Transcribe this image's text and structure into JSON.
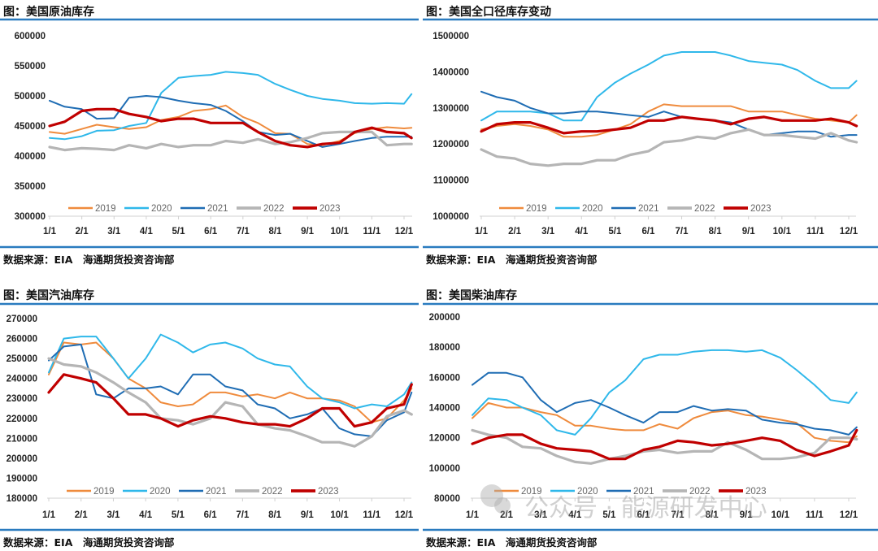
{
  "colors": {
    "accent_rule": "#2a7bbf",
    "2019": "#ef8b3d",
    "2020": "#2fb8ea",
    "2021": "#1f6db4",
    "2022": "#b5b5b5",
    "2023": "#c00000"
  },
  "watermark": "公众号 · 能源研发中心",
  "chart_data": [
    {
      "type": "line",
      "title": "图：美国原油库存",
      "source": "数据来源：EIA　海通期货投资咨询部",
      "xlabel": "",
      "ylabel": "",
      "x_ticks": [
        "1/1",
        "2/1",
        "3/1",
        "4/1",
        "5/1",
        "6/1",
        "7/1",
        "8/1",
        "9/1",
        "10/1",
        "11/1",
        "12/1"
      ],
      "y_ticks": [
        "300000",
        "350000",
        "400000",
        "450000",
        "500000",
        "550000",
        "600000"
      ],
      "ylim": [
        300000,
        600000
      ],
      "legend": "bottom-inside",
      "grid": false,
      "x": [
        "1/1",
        "1/15",
        "2/1",
        "2/15",
        "3/1",
        "3/15",
        "4/1",
        "4/15",
        "5/1",
        "5/15",
        "6/1",
        "6/15",
        "7/1",
        "7/15",
        "8/1",
        "8/15",
        "9/1",
        "9/15",
        "10/1",
        "10/15",
        "11/1",
        "11/15",
        "12/1",
        "12/8"
      ],
      "series": [
        {
          "name": "2019",
          "values": [
            440000,
            437000,
            445000,
            452000,
            448000,
            445000,
            448000,
            460000,
            465000,
            475000,
            478000,
            484000,
            465000,
            455000,
            438000,
            437000,
            420000,
            418000,
            425000,
            438000,
            445000,
            448000,
            446000,
            447000
          ]
        },
        {
          "name": "2020",
          "values": [
            430000,
            428000,
            433000,
            442000,
            443000,
            450000,
            455000,
            505000,
            530000,
            533000,
            535000,
            540000,
            538000,
            535000,
            520000,
            510000,
            500000,
            495000,
            492000,
            488000,
            487000,
            488000,
            487000,
            503000
          ]
        },
        {
          "name": "2021",
          "values": [
            492000,
            482000,
            478000,
            462000,
            463000,
            497000,
            500000,
            498000,
            492000,
            488000,
            485000,
            475000,
            458000,
            440000,
            435000,
            437000,
            425000,
            415000,
            420000,
            425000,
            430000,
            432000,
            432000,
            432000
          ]
        },
        {
          "name": "2022",
          "values": [
            415000,
            410000,
            413000,
            412000,
            410000,
            418000,
            413000,
            420000,
            415000,
            418000,
            418000,
            425000,
            422000,
            428000,
            420000,
            423000,
            430000,
            438000,
            440000,
            440000,
            440000,
            418000,
            420000,
            420000
          ]
        },
        {
          "name": "2023",
          "values": [
            450000,
            457000,
            475000,
            478000,
            478000,
            470000,
            465000,
            458000,
            462000,
            462000,
            455000,
            455000,
            455000,
            440000,
            425000,
            418000,
            415000,
            420000,
            422000,
            440000,
            447000,
            440000,
            438000,
            430000
          ]
        }
      ]
    },
    {
      "type": "line",
      "title": "图：美国全口径库存变动",
      "source": "数据来源：EIA　海通期货投资咨询部",
      "xlabel": "",
      "ylabel": "",
      "x_ticks": [
        "1/1",
        "2/1",
        "3/1",
        "4/1",
        "5/1",
        "6/1",
        "7/1",
        "8/1",
        "9/1",
        "10/1",
        "11/1",
        "12/1"
      ],
      "y_ticks": [
        "1000000",
        "1100000",
        "1200000",
        "1300000",
        "1400000",
        "1500000"
      ],
      "ylim": [
        1000000,
        1500000
      ],
      "legend": "bottom-inside",
      "grid": false,
      "x": [
        "1/1",
        "1/15",
        "2/1",
        "2/15",
        "3/1",
        "3/15",
        "4/1",
        "4/15",
        "5/1",
        "5/15",
        "6/1",
        "6/15",
        "7/1",
        "7/15",
        "8/1",
        "8/15",
        "9/1",
        "9/15",
        "10/1",
        "10/15",
        "11/1",
        "11/15",
        "12/1",
        "12/8"
      ],
      "series": [
        {
          "name": "2019",
          "values": [
            1240000,
            1250000,
            1255000,
            1250000,
            1240000,
            1220000,
            1220000,
            1225000,
            1240000,
            1255000,
            1290000,
            1310000,
            1305000,
            1305000,
            1305000,
            1305000,
            1290000,
            1290000,
            1290000,
            1280000,
            1270000,
            1265000,
            1260000,
            1280000
          ]
        },
        {
          "name": "2020",
          "values": [
            1265000,
            1290000,
            1290000,
            1290000,
            1285000,
            1265000,
            1265000,
            1330000,
            1370000,
            1395000,
            1420000,
            1445000,
            1455000,
            1455000,
            1455000,
            1445000,
            1430000,
            1425000,
            1420000,
            1405000,
            1375000,
            1355000,
            1355000,
            1375000
          ]
        },
        {
          "name": "2021",
          "values": [
            1345000,
            1330000,
            1320000,
            1300000,
            1285000,
            1285000,
            1290000,
            1290000,
            1285000,
            1280000,
            1275000,
            1290000,
            1275000,
            1270000,
            1265000,
            1260000,
            1240000,
            1225000,
            1230000,
            1235000,
            1235000,
            1220000,
            1225000,
            1225000
          ]
        },
        {
          "name": "2022",
          "values": [
            1185000,
            1165000,
            1160000,
            1145000,
            1140000,
            1145000,
            1145000,
            1155000,
            1155000,
            1170000,
            1180000,
            1205000,
            1210000,
            1220000,
            1215000,
            1230000,
            1240000,
            1225000,
            1225000,
            1220000,
            1215000,
            1230000,
            1210000,
            1205000
          ]
        },
        {
          "name": "2023",
          "values": [
            1235000,
            1255000,
            1260000,
            1260000,
            1245000,
            1230000,
            1235000,
            1235000,
            1240000,
            1245000,
            1265000,
            1265000,
            1275000,
            1270000,
            1265000,
            1255000,
            1270000,
            1275000,
            1265000,
            1265000,
            1265000,
            1270000,
            1260000,
            1250000
          ]
        }
      ]
    },
    {
      "type": "line",
      "title": "图：美国汽油库存",
      "source": "数据来源：EIA　海通期货投资咨询部",
      "xlabel": "",
      "ylabel": "",
      "x_ticks": [
        "1/1",
        "2/1",
        "3/1",
        "4/1",
        "5/1",
        "6/1",
        "7/1",
        "8/1",
        "9/1",
        "10/1",
        "11/1",
        "12/1"
      ],
      "y_ticks": [
        "180000",
        "190000",
        "200000",
        "210000",
        "220000",
        "230000",
        "240000",
        "250000",
        "260000",
        "270000"
      ],
      "ylim": [
        180000,
        270000
      ],
      "legend": "bottom-inside",
      "grid": false,
      "x": [
        "1/1",
        "1/15",
        "2/1",
        "2/15",
        "3/1",
        "3/15",
        "4/1",
        "4/15",
        "5/1",
        "5/15",
        "6/1",
        "6/15",
        "7/1",
        "7/15",
        "8/1",
        "8/15",
        "9/1",
        "9/15",
        "10/1",
        "10/15",
        "11/1",
        "11/15",
        "12/1",
        "12/8"
      ],
      "series": [
        {
          "name": "2019",
          "values": [
            242000,
            258000,
            257000,
            258000,
            250000,
            240000,
            235000,
            228000,
            226000,
            227000,
            233000,
            233000,
            231000,
            232000,
            230000,
            233000,
            230000,
            230000,
            229000,
            226000,
            218000,
            220000,
            229000,
            235000
          ]
        },
        {
          "name": "2020",
          "values": [
            243000,
            260000,
            261000,
            261000,
            250000,
            240000,
            250000,
            262000,
            258000,
            253000,
            257000,
            258000,
            255000,
            250000,
            247000,
            246000,
            236000,
            230000,
            228000,
            225000,
            227000,
            226000,
            232000,
            238000
          ]
        },
        {
          "name": "2021",
          "values": [
            249000,
            256000,
            257000,
            232000,
            230000,
            235000,
            235000,
            236000,
            232000,
            242000,
            242000,
            236000,
            234000,
            227000,
            225000,
            220000,
            222000,
            225000,
            215000,
            212000,
            211000,
            219000,
            223000,
            233000
          ]
        },
        {
          "name": "2022",
          "values": [
            250000,
            247000,
            246000,
            243000,
            238000,
            233000,
            228000,
            220000,
            219000,
            217000,
            220000,
            228000,
            226000,
            217000,
            215000,
            214000,
            211000,
            208000,
            208000,
            206000,
            211000,
            221000,
            224000,
            222000
          ]
        },
        {
          "name": "2023",
          "values": [
            233000,
            242000,
            240000,
            238000,
            230000,
            222000,
            222000,
            220000,
            216000,
            219000,
            221000,
            220000,
            218000,
            217000,
            217000,
            216000,
            220000,
            225000,
            225000,
            216000,
            218000,
            225000,
            227000,
            237000
          ]
        }
      ]
    },
    {
      "type": "line",
      "title": "图：美国柴油库存",
      "source": "数据来源：EIA　海通期货投资咨询部",
      "xlabel": "",
      "ylabel": "",
      "x_ticks": [
        "1/1",
        "2/1",
        "3/1",
        "4/1",
        "5/1",
        "6/1",
        "7/1",
        "8/1",
        "9/1",
        "10/1",
        "11/1",
        "12/1"
      ],
      "y_ticks": [
        "80000",
        "100000",
        "120000",
        "140000",
        "160000",
        "180000",
        "200000"
      ],
      "ylim": [
        80000,
        200000
      ],
      "legend": "bottom-inside",
      "grid": false,
      "x": [
        "1/1",
        "1/15",
        "2/1",
        "2/15",
        "3/1",
        "3/15",
        "4/1",
        "4/15",
        "5/1",
        "5/15",
        "6/1",
        "6/15",
        "7/1",
        "7/15",
        "8/1",
        "8/15",
        "9/1",
        "9/15",
        "10/1",
        "10/15",
        "11/1",
        "11/15",
        "12/1",
        "12/8"
      ],
      "series": [
        {
          "name": "2019",
          "values": [
            133000,
            143000,
            140000,
            140000,
            137000,
            135000,
            128000,
            128000,
            126000,
            125000,
            125000,
            129000,
            126000,
            133000,
            137000,
            138000,
            135000,
            134000,
            132000,
            130000,
            120000,
            118000,
            117000,
            121000
          ]
        },
        {
          "name": "2020",
          "values": [
            135000,
            146000,
            145000,
            140000,
            135000,
            125000,
            122000,
            133000,
            150000,
            158000,
            172000,
            175000,
            175000,
            177000,
            178000,
            178000,
            177000,
            178000,
            173000,
            165000,
            155000,
            145000,
            143000,
            150000
          ]
        },
        {
          "name": "2021",
          "values": [
            155000,
            163000,
            163000,
            160000,
            145000,
            137000,
            143000,
            145000,
            140000,
            135000,
            130000,
            137000,
            137000,
            141000,
            138000,
            139000,
            138000,
            132000,
            130000,
            129000,
            126000,
            125000,
            122000,
            127000
          ]
        },
        {
          "name": "2022",
          "values": [
            125000,
            122000,
            120000,
            114000,
            113000,
            108000,
            104000,
            103000,
            106000,
            108000,
            111000,
            112000,
            110000,
            111000,
            111000,
            117000,
            112000,
            106000,
            106000,
            107000,
            110000,
            120000,
            120000,
            119000
          ]
        },
        {
          "name": "2023",
          "values": [
            116000,
            120000,
            122000,
            122000,
            116000,
            113000,
            112000,
            111000,
            106000,
            106000,
            112000,
            114000,
            118000,
            117000,
            115000,
            116000,
            118000,
            120000,
            118000,
            112000,
            108000,
            111000,
            115000,
            125000
          ]
        }
      ]
    }
  ]
}
